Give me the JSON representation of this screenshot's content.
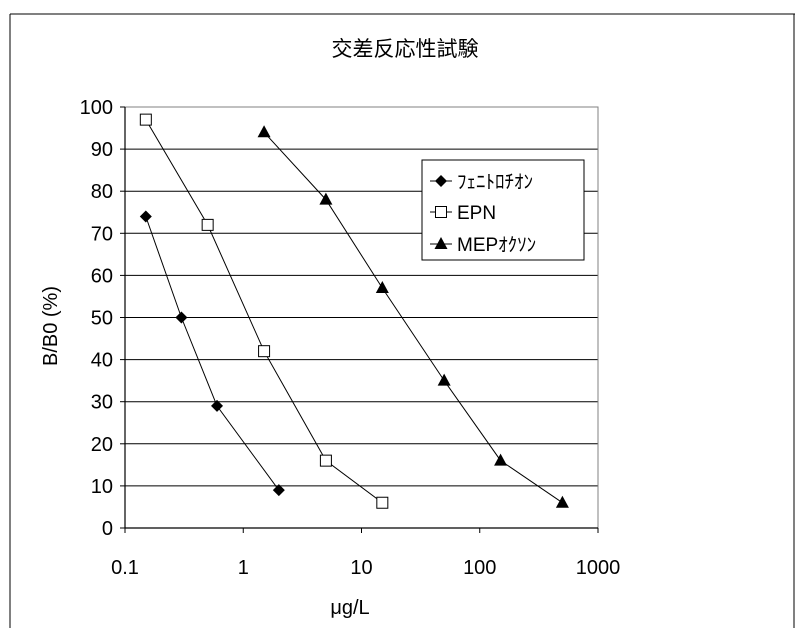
{
  "chart_data": {
    "type": "line",
    "title": "交差反応性試験",
    "xlabel": "μg/L",
    "ylabel": "B/B0 (%)",
    "x_scale": "log",
    "xlim": [
      0.1,
      1000
    ],
    "ylim": [
      0,
      100
    ],
    "x_ticks": [
      0.1,
      1,
      10,
      100,
      1000
    ],
    "x_tick_labels": [
      "0.1",
      "1",
      "10",
      "100",
      "1000"
    ],
    "y_ticks": [
      0,
      10,
      20,
      30,
      40,
      50,
      60,
      70,
      80,
      90,
      100
    ],
    "y_tick_labels": [
      "0",
      "10",
      "20",
      "30",
      "40",
      "50",
      "60",
      "70",
      "80",
      "90",
      "100"
    ],
    "grid": "horizontal",
    "legend_position": "right",
    "series": [
      {
        "name": "ﾌｪﾆﾄﾛﾁｵﾝ",
        "marker": "diamond",
        "x": [
          0.15,
          0.3,
          0.6,
          2
        ],
        "y": [
          74,
          50,
          29,
          9
        ]
      },
      {
        "name": "EPN",
        "marker": "square-open",
        "x": [
          0.15,
          0.5,
          1.5,
          5,
          15
        ],
        "y": [
          97,
          72,
          42,
          16,
          6
        ]
      },
      {
        "name": "MEPｵｸｿﾝ",
        "marker": "triangle",
        "x": [
          1.5,
          5,
          15,
          50,
          150,
          500
        ],
        "y": [
          94,
          78,
          57,
          35,
          16,
          6
        ]
      }
    ]
  }
}
